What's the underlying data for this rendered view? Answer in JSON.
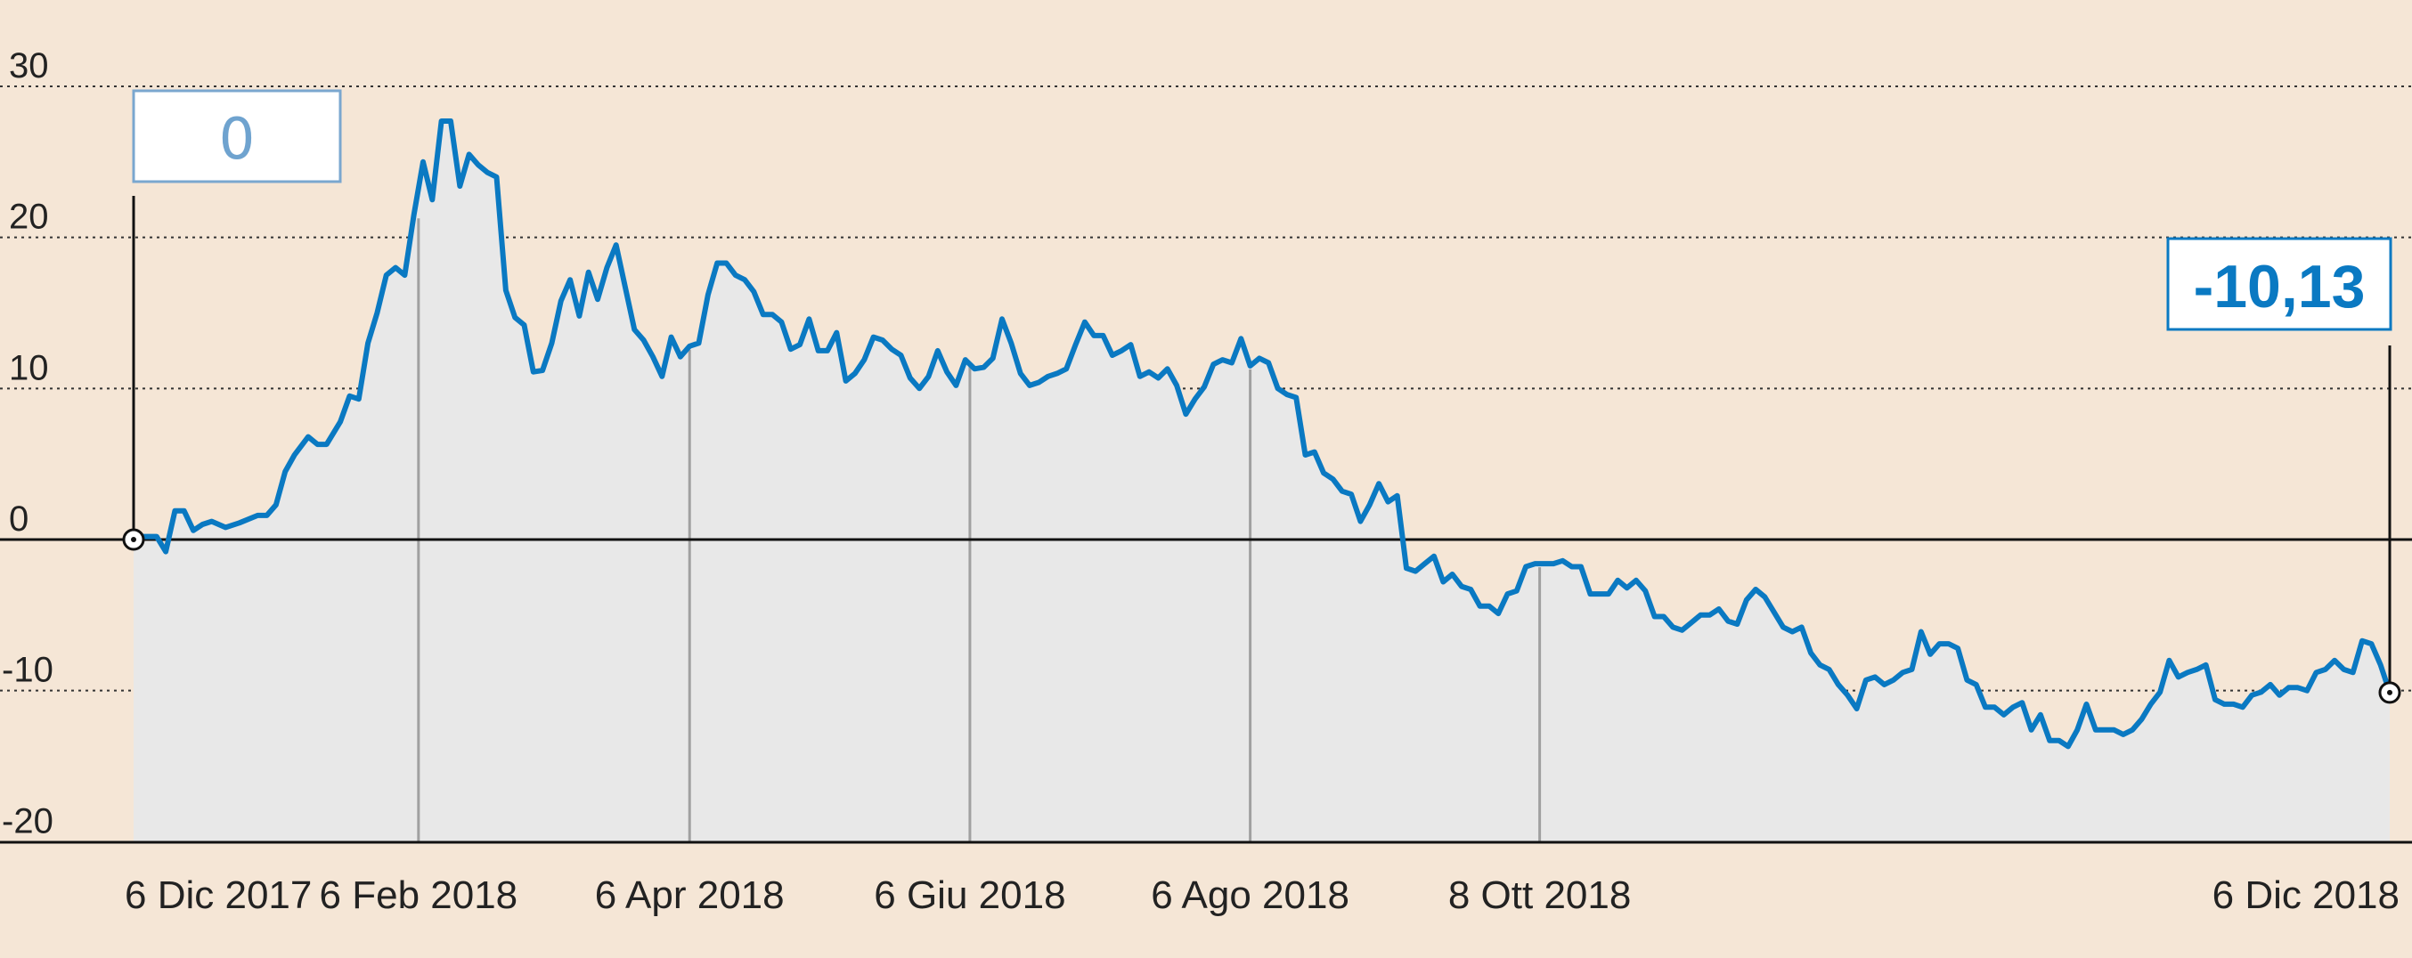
{
  "chart_data": {
    "type": "line",
    "yticks": [
      "30",
      "20",
      "10",
      "0",
      "-10",
      "-20"
    ],
    "ytick_values": [
      30,
      20,
      10,
      0,
      -10,
      -20
    ],
    "ylim": [
      -20,
      30
    ],
    "xticks": [
      "6 Dic 2017",
      "6 Feb 2018",
      "6 Apr 2018",
      "6 Giu 2018",
      "6 Ago 2018",
      "8 Ott 2018",
      "6 Dic 2018"
    ],
    "xtick_dates": [
      "2017-12-06",
      "2018-02-06",
      "2018-04-06",
      "2018-06-06",
      "2018-08-06",
      "2018-10-08",
      "2018-12-06"
    ],
    "start_label": "0",
    "end_label": "-10,13",
    "start_value": 0,
    "end_value": -10.13,
    "colors": {
      "line": "#0a79c2",
      "area": "#e8e8e8",
      "background": "#f5e6d6",
      "start_box_text": "#6fa3cf",
      "end_box_text": "#0a79c2"
    },
    "series": [
      {
        "points": [
          [
            "2017-12-06",
            0.0
          ],
          [
            "2017-12-08",
            0.2
          ],
          [
            "2017-12-11",
            0.2
          ],
          [
            "2017-12-13",
            -0.8
          ],
          [
            "2017-12-15",
            1.9
          ],
          [
            "2017-12-17",
            1.9
          ],
          [
            "2017-12-19",
            0.6
          ],
          [
            "2017-12-21",
            1.0
          ],
          [
            "2017-12-23",
            1.2
          ],
          [
            "2017-12-26",
            0.8
          ],
          [
            "2017-12-29",
            1.1
          ],
          [
            "2018-01-02",
            1.6
          ],
          [
            "2018-01-04",
            1.6
          ],
          [
            "2018-01-06",
            2.3
          ],
          [
            "2018-01-08",
            4.5
          ],
          [
            "2018-01-10",
            5.6
          ],
          [
            "2018-01-13",
            6.8
          ],
          [
            "2018-01-15",
            6.3
          ],
          [
            "2018-01-17",
            6.3
          ],
          [
            "2018-01-20",
            7.8
          ],
          [
            "2018-01-22",
            9.5
          ],
          [
            "2018-01-24",
            9.3
          ],
          [
            "2018-01-26",
            13.0
          ],
          [
            "2018-01-28",
            15.0
          ],
          [
            "2018-01-30",
            17.5
          ],
          [
            "2018-02-01",
            18.0
          ],
          [
            "2018-02-03",
            17.5
          ],
          [
            "2018-02-05",
            21.5
          ],
          [
            "2018-02-07",
            25.0
          ],
          [
            "2018-02-09",
            22.5
          ],
          [
            "2018-02-11",
            27.7
          ],
          [
            "2018-02-13",
            27.7
          ],
          [
            "2018-02-15",
            23.4
          ],
          [
            "2018-02-17",
            25.5
          ],
          [
            "2018-02-19",
            24.8
          ],
          [
            "2018-02-21",
            24.3
          ],
          [
            "2018-02-23",
            24.0
          ],
          [
            "2018-02-25",
            16.5
          ],
          [
            "2018-02-27",
            14.7
          ],
          [
            "2018-03-01",
            14.2
          ],
          [
            "2018-03-03",
            11.1
          ],
          [
            "2018-03-05",
            11.2
          ],
          [
            "2018-03-07",
            13.0
          ],
          [
            "2018-03-09",
            15.8
          ],
          [
            "2018-03-11",
            17.2
          ],
          [
            "2018-03-13",
            14.8
          ],
          [
            "2018-03-15",
            17.7
          ],
          [
            "2018-03-17",
            15.9
          ],
          [
            "2018-03-19",
            18.0
          ],
          [
            "2018-03-21",
            19.5
          ],
          [
            "2018-03-23",
            16.7
          ],
          [
            "2018-03-25",
            13.9
          ],
          [
            "2018-03-27",
            13.2
          ],
          [
            "2018-03-29",
            12.1
          ],
          [
            "2018-03-31",
            10.8
          ],
          [
            "2018-04-02",
            13.4
          ],
          [
            "2018-04-04",
            12.1
          ],
          [
            "2018-04-06",
            12.8
          ],
          [
            "2018-04-08",
            13.0
          ],
          [
            "2018-04-10",
            16.2
          ],
          [
            "2018-04-12",
            18.3
          ],
          [
            "2018-04-14",
            18.3
          ],
          [
            "2018-04-16",
            17.5
          ],
          [
            "2018-04-18",
            17.2
          ],
          [
            "2018-04-20",
            16.4
          ],
          [
            "2018-04-22",
            14.9
          ],
          [
            "2018-04-24",
            14.9
          ],
          [
            "2018-04-26",
            14.4
          ],
          [
            "2018-04-28",
            12.6
          ],
          [
            "2018-04-30",
            12.9
          ],
          [
            "2018-05-02",
            14.6
          ],
          [
            "2018-05-04",
            12.5
          ],
          [
            "2018-05-06",
            12.5
          ],
          [
            "2018-05-08",
            13.7
          ],
          [
            "2018-05-10",
            10.5
          ],
          [
            "2018-05-12",
            11.0
          ],
          [
            "2018-05-14",
            11.9
          ],
          [
            "2018-05-16",
            13.4
          ],
          [
            "2018-05-18",
            13.2
          ],
          [
            "2018-05-20",
            12.6
          ],
          [
            "2018-05-22",
            12.2
          ],
          [
            "2018-05-24",
            10.7
          ],
          [
            "2018-05-26",
            10.0
          ],
          [
            "2018-05-28",
            10.8
          ],
          [
            "2018-05-30",
            12.5
          ],
          [
            "2018-06-01",
            11.1
          ],
          [
            "2018-06-03",
            10.2
          ],
          [
            "2018-06-05",
            11.9
          ],
          [
            "2018-06-07",
            11.3
          ],
          [
            "2018-06-09",
            11.4
          ],
          [
            "2018-06-11",
            12.0
          ],
          [
            "2018-06-13",
            14.6
          ],
          [
            "2018-06-15",
            13.0
          ],
          [
            "2018-06-17",
            11.0
          ],
          [
            "2018-06-19",
            10.2
          ],
          [
            "2018-06-21",
            10.4
          ],
          [
            "2018-06-23",
            10.8
          ],
          [
            "2018-06-25",
            11.0
          ],
          [
            "2018-06-27",
            11.3
          ],
          [
            "2018-06-29",
            12.9
          ],
          [
            "2018-07-01",
            14.4
          ],
          [
            "2018-07-03",
            13.5
          ],
          [
            "2018-07-05",
            13.5
          ],
          [
            "2018-07-07",
            12.2
          ],
          [
            "2018-07-09",
            12.5
          ],
          [
            "2018-07-11",
            12.9
          ],
          [
            "2018-07-13",
            10.8
          ],
          [
            "2018-07-15",
            11.1
          ],
          [
            "2018-07-17",
            10.7
          ],
          [
            "2018-07-19",
            11.3
          ],
          [
            "2018-07-21",
            10.2
          ],
          [
            "2018-07-23",
            8.3
          ],
          [
            "2018-07-25",
            9.3
          ],
          [
            "2018-07-27",
            10.1
          ],
          [
            "2018-07-29",
            11.6
          ],
          [
            "2018-07-31",
            11.9
          ],
          [
            "2018-08-02",
            11.7
          ],
          [
            "2018-08-04",
            13.3
          ],
          [
            "2018-08-06",
            11.5
          ],
          [
            "2018-08-08",
            12.0
          ],
          [
            "2018-08-10",
            11.7
          ],
          [
            "2018-08-12",
            10.0
          ],
          [
            "2018-08-14",
            9.6
          ],
          [
            "2018-08-16",
            9.4
          ],
          [
            "2018-08-18",
            5.6
          ],
          [
            "2018-08-20",
            5.8
          ],
          [
            "2018-08-22",
            4.4
          ],
          [
            "2018-08-24",
            4.0
          ],
          [
            "2018-08-26",
            3.2
          ],
          [
            "2018-08-28",
            3.0
          ],
          [
            "2018-08-30",
            1.2
          ],
          [
            "2018-09-01",
            2.3
          ],
          [
            "2018-09-03",
            3.7
          ],
          [
            "2018-09-05",
            2.5
          ],
          [
            "2018-09-07",
            2.9
          ],
          [
            "2018-09-09",
            -1.9
          ],
          [
            "2018-09-11",
            -2.1
          ],
          [
            "2018-09-13",
            -1.6
          ],
          [
            "2018-09-15",
            -1.1
          ],
          [
            "2018-09-17",
            -2.8
          ],
          [
            "2018-09-19",
            -2.3
          ],
          [
            "2018-09-21",
            -3.1
          ],
          [
            "2018-09-23",
            -3.3
          ],
          [
            "2018-09-25",
            -4.4
          ],
          [
            "2018-09-27",
            -4.4
          ],
          [
            "2018-09-29",
            -4.9
          ],
          [
            "2018-10-01",
            -3.6
          ],
          [
            "2018-10-03",
            -3.4
          ],
          [
            "2018-10-05",
            -1.8
          ],
          [
            "2018-10-07",
            -1.6
          ],
          [
            "2018-10-09",
            -1.6
          ],
          [
            "2018-10-11",
            -1.6
          ],
          [
            "2018-10-13",
            -1.4
          ],
          [
            "2018-10-15",
            -1.8
          ],
          [
            "2018-10-17",
            -1.8
          ],
          [
            "2018-10-19",
            -3.6
          ],
          [
            "2018-10-21",
            -3.6
          ],
          [
            "2018-10-23",
            -3.6
          ],
          [
            "2018-10-25",
            -2.7
          ],
          [
            "2018-10-27",
            -3.2
          ],
          [
            "2018-10-29",
            -2.7
          ],
          [
            "2018-10-31",
            -3.4
          ],
          [
            "2018-11-02",
            -5.1
          ],
          [
            "2018-11-04",
            -5.1
          ],
          [
            "2018-11-06",
            -5.8
          ],
          [
            "2018-11-08",
            -6.0
          ],
          [
            "2018-11-10",
            -5.5
          ],
          [
            "2018-11-12",
            -5.0
          ],
          [
            "2018-11-14",
            -5.0
          ],
          [
            "2018-11-16",
            -4.6
          ],
          [
            "2018-11-18",
            -5.4
          ],
          [
            "2018-11-20",
            -5.6
          ],
          [
            "2018-11-22",
            -4.0
          ],
          [
            "2018-11-24",
            -3.3
          ],
          [
            "2018-11-26",
            -3.8
          ],
          [
            "2018-11-28",
            -4.8
          ],
          [
            "2018-11-30",
            -5.8
          ],
          [
            "2018-12-02",
            -6.1
          ],
          [
            "2018-12-04",
            -5.8
          ],
          [
            "2018-12-06",
            -7.5
          ],
          [
            "2018-12-08",
            -8.3
          ],
          [
            "2018-12-10",
            -8.6
          ],
          [
            "2018-12-12",
            -9.6
          ],
          [
            "2018-12-14",
            -10.3
          ],
          [
            "2018-12-16",
            -11.2
          ],
          [
            "2018-12-18",
            -9.3
          ],
          [
            "2018-12-20",
            -9.1
          ],
          [
            "2018-12-22",
            -9.6
          ],
          [
            "2018-12-24",
            -9.3
          ],
          [
            "2018-12-26",
            -8.8
          ],
          [
            "2018-12-28",
            -8.6
          ],
          [
            "2018-12-30",
            -6.1
          ],
          [
            "2019-01-01",
            -7.6
          ],
          [
            "2019-01-03",
            -6.9
          ],
          [
            "2019-01-05",
            -6.9
          ],
          [
            "2019-01-07",
            -7.2
          ],
          [
            "2019-01-09",
            -9.3
          ],
          [
            "2019-01-11",
            -9.6
          ],
          [
            "2019-01-13",
            -11.1
          ],
          [
            "2019-01-15",
            -11.1
          ],
          [
            "2019-01-17",
            -11.6
          ],
          [
            "2019-01-19",
            -11.1
          ],
          [
            "2019-01-21",
            -10.8
          ],
          [
            "2019-01-23",
            -12.6
          ],
          [
            "2019-01-25",
            -11.6
          ],
          [
            "2019-01-27",
            -13.3
          ],
          [
            "2019-01-29",
            -13.3
          ],
          [
            "2019-01-31",
            -13.7
          ],
          [
            "2019-02-02",
            -12.6
          ],
          [
            "2019-02-04",
            -10.9
          ],
          [
            "2019-02-06",
            -12.6
          ],
          [
            "2019-02-08",
            -12.6
          ],
          [
            "2019-02-10",
            -12.6
          ],
          [
            "2019-02-12",
            -12.9
          ],
          [
            "2019-02-14",
            -12.6
          ],
          [
            "2019-02-16",
            -11.9
          ],
          [
            "2019-02-18",
            -10.9
          ],
          [
            "2019-02-20",
            -10.1
          ],
          [
            "2019-02-22",
            -8.0
          ],
          [
            "2019-02-24",
            -9.1
          ],
          [
            "2019-02-26",
            -8.8
          ],
          [
            "2019-02-28",
            -8.6
          ],
          [
            "2019-03-02",
            -8.3
          ],
          [
            "2019-03-04",
            -10.6
          ],
          [
            "2019-03-06",
            -10.9
          ],
          [
            "2019-03-08",
            -10.9
          ],
          [
            "2019-03-10",
            -11.1
          ],
          [
            "2019-03-12",
            -10.3
          ],
          [
            "2019-03-14",
            -10.1
          ],
          [
            "2019-03-16",
            -9.6
          ],
          [
            "2019-03-18",
            -10.3
          ],
          [
            "2019-03-20",
            -9.8
          ],
          [
            "2019-03-22",
            -9.8
          ],
          [
            "2019-03-24",
            -10.0
          ],
          [
            "2019-03-26",
            -8.8
          ],
          [
            "2019-03-28",
            -8.6
          ],
          [
            "2019-03-30",
            -8.0
          ],
          [
            "2019-04-01",
            -8.6
          ],
          [
            "2019-04-03",
            -8.8
          ],
          [
            "2019-04-05",
            -6.7
          ],
          [
            "2019-04-07",
            -6.9
          ],
          [
            "2019-04-09",
            -8.3
          ],
          [
            "2019-04-11",
            -10.13
          ]
        ]
      }
    ]
  }
}
